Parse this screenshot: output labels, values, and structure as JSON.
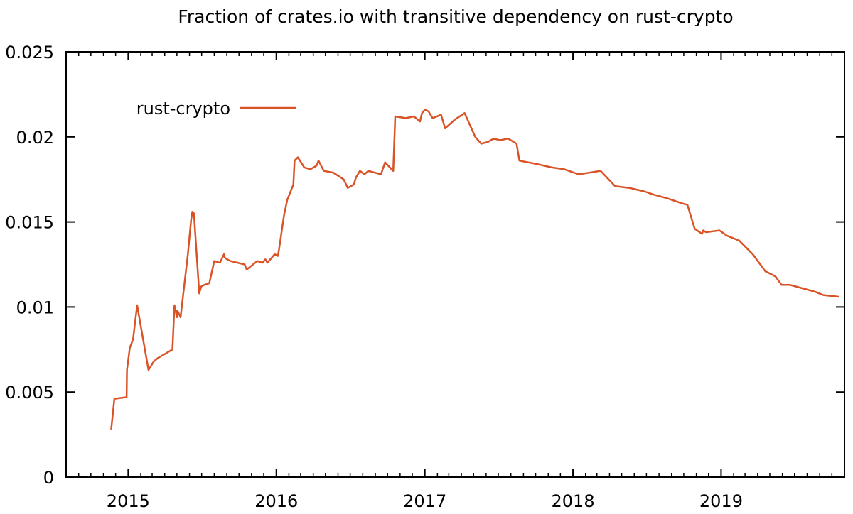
{
  "chart_data": {
    "type": "line",
    "title": "Fraction of crates.io with transitive dependency on rust-crypto",
    "xlabel": "",
    "ylabel": "",
    "xlim": [
      "2014-08-01",
      "2019-11-01"
    ],
    "ylim": [
      0,
      0.025
    ],
    "x_ticks": [
      {
        "date": "2015-01-01",
        "label": "2015"
      },
      {
        "date": "2016-01-01",
        "label": "2016"
      },
      {
        "date": "2017-01-01",
        "label": "2017"
      },
      {
        "date": "2018-01-01",
        "label": "2018"
      },
      {
        "date": "2019-01-01",
        "label": "2019"
      }
    ],
    "y_ticks": [
      {
        "value": 0,
        "label": "0"
      },
      {
        "value": 0.005,
        "label": "0.005"
      },
      {
        "value": 0.01,
        "label": "0.01"
      },
      {
        "value": 0.015,
        "label": "0.015"
      },
      {
        "value": 0.02,
        "label": "0.02"
      },
      {
        "value": 0.025,
        "label": "0.025"
      }
    ],
    "grid": false,
    "legend_position": "top-left",
    "series": [
      {
        "name": "rust-crypto",
        "color": "#d95327",
        "x": [
          "2014-11-20",
          "2014-11-28",
          "2014-12-28",
          "2014-12-29",
          "2015-01-05",
          "2015-01-13",
          "2015-01-23",
          "2015-02-14",
          "2015-02-20",
          "2015-03-05",
          "2015-03-15",
          "2015-04-20",
          "2015-04-25",
          "2015-05-01",
          "2015-05-02",
          "2015-05-10",
          "2015-05-28",
          "2015-06-05",
          "2015-06-08",
          "2015-06-12",
          "2015-06-25",
          "2015-06-30",
          "2015-07-07",
          "2015-07-20",
          "2015-08-01",
          "2015-08-15",
          "2015-08-25",
          "2015-08-27",
          "2015-09-02",
          "2015-09-10",
          "2015-10-15",
          "2015-10-20",
          "2015-11-15",
          "2015-11-28",
          "2015-12-05",
          "2015-12-10",
          "2015-12-28",
          "2016-01-05",
          "2016-01-09",
          "2016-01-20",
          "2016-01-28",
          "2016-02-12",
          "2016-02-15",
          "2016-02-23",
          "2016-03-10",
          "2016-03-25",
          "2016-04-09",
          "2016-04-14",
          "2016-04-27",
          "2016-05-20",
          "2016-06-15",
          "2016-06-25",
          "2016-07-10",
          "2016-07-15",
          "2016-07-25",
          "2016-08-05",
          "2016-08-15",
          "2016-09-15",
          "2016-09-25",
          "2016-10-15",
          "2016-10-20",
          "2016-11-15",
          "2016-12-05",
          "2016-12-20",
          "2016-12-25",
          "2017-01-01",
          "2017-01-10",
          "2017-01-20",
          "2017-02-10",
          "2017-02-20",
          "2017-03-15",
          "2017-04-09",
          "2017-05-05",
          "2017-05-20",
          "2017-06-05",
          "2017-06-20",
          "2017-07-05",
          "2017-07-25",
          "2017-08-15",
          "2017-08-22",
          "2017-10-05",
          "2017-11-10",
          "2017-12-10",
          "2018-01-15",
          "2018-03-10",
          "2018-04-15",
          "2018-05-20",
          "2018-06-25",
          "2018-07-20",
          "2018-08-20",
          "2018-09-25",
          "2018-10-10",
          "2018-10-28",
          "2018-11-15",
          "2018-11-18",
          "2018-11-25",
          "2018-12-28",
          "2019-01-15",
          "2019-02-15",
          "2019-03-20",
          "2019-04-20",
          "2019-05-15",
          "2019-05-30",
          "2019-06-20",
          "2019-07-20",
          "2019-08-20",
          "2019-09-10",
          "2019-10-18"
        ],
        "y": [
          0.0028,
          0.0046,
          0.0047,
          0.0063,
          0.0076,
          0.0081,
          0.0101,
          0.0071,
          0.0063,
          0.0068,
          0.007,
          0.0075,
          0.0101,
          0.0094,
          0.0098,
          0.0094,
          0.0131,
          0.0151,
          0.0156,
          0.0155,
          0.0108,
          0.0112,
          0.0113,
          0.0114,
          0.0127,
          0.0126,
          0.0131,
          0.0129,
          0.0128,
          0.0127,
          0.0125,
          0.0122,
          0.0127,
          0.0126,
          0.0128,
          0.0126,
          0.0131,
          0.013,
          0.0136,
          0.0154,
          0.0163,
          0.0172,
          0.0186,
          0.0188,
          0.0182,
          0.0181,
          0.0183,
          0.0186,
          0.018,
          0.0179,
          0.0175,
          0.017,
          0.0172,
          0.0176,
          0.018,
          0.0178,
          0.018,
          0.0178,
          0.0185,
          0.018,
          0.0212,
          0.0211,
          0.0212,
          0.0209,
          0.0214,
          0.0216,
          0.0215,
          0.0211,
          0.0213,
          0.0205,
          0.021,
          0.0214,
          0.02,
          0.0196,
          0.0197,
          0.0199,
          0.0198,
          0.0199,
          0.0196,
          0.0186,
          0.0184,
          0.0182,
          0.0181,
          0.0178,
          0.018,
          0.0171,
          0.017,
          0.0168,
          0.0166,
          0.0164,
          0.0161,
          0.016,
          0.0146,
          0.0143,
          0.0145,
          0.0144,
          0.0145,
          0.0142,
          0.0139,
          0.0131,
          0.0121,
          0.0118,
          0.0113,
          0.0113,
          0.0111,
          0.0109,
          0.0107,
          0.0106
        ]
      }
    ]
  }
}
